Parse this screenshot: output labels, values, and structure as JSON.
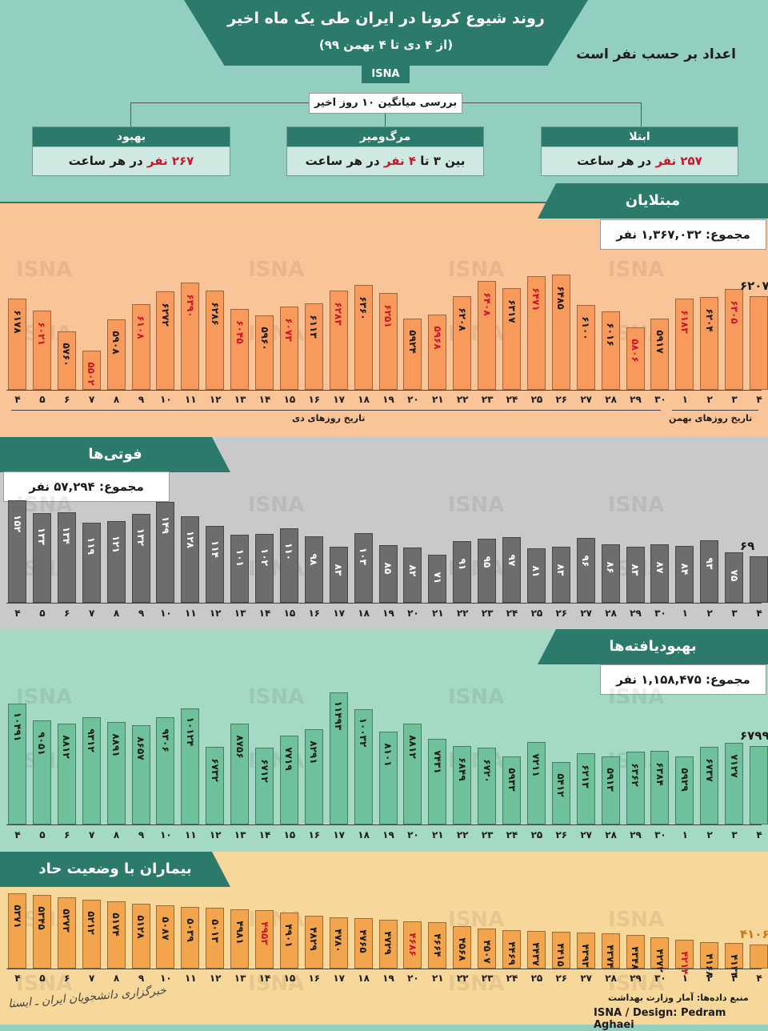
{
  "header": {
    "title": "روند شیوع کرونا در ایران طی یک ماه اخیر",
    "subtitle": "(از ۴ دی تا ۴ بهمن ۹۹)",
    "agency": "ISNA",
    "unit_note": "اعداد بر حسب نفر است",
    "avg_label": "بررسی میانگین ۱۰ روز اخیر"
  },
  "summary": {
    "recovery": {
      "title": "بهبود",
      "value": "۲۶۷ نفر",
      "rest": " در هر ساعت"
    },
    "death": {
      "title": "مرگ‌ومیر",
      "pre": "بین ۳ تا ",
      "value": "۴ نفر",
      "rest": " در هر ساعت"
    },
    "infection": {
      "title": "ابتلا",
      "value": "۲۵۷ نفر",
      "rest": " در هر ساعت"
    }
  },
  "colors": {
    "teal": "#2b7a6b",
    "infected_bg": "#f9c497",
    "infected_bar": "#f79a5c",
    "deaths_bg": "#c9c9c9",
    "deaths_bar": "#6d6d6d",
    "recovered_bg": "#a4d9c3",
    "recovered_bar": "#6ec19a",
    "severe_bg": "#f8d79a",
    "severe_bar": "#f3a54e",
    "red": "#c8172a"
  },
  "x_axis": {
    "days": [
      "۴",
      "۵",
      "۶",
      "۷",
      "۸",
      "۹",
      "۱۰",
      "۱۱",
      "۱۲",
      "۱۳",
      "۱۴",
      "۱۵",
      "۱۶",
      "۱۷",
      "۱۸",
      "۱۹",
      "۲۰",
      "۲۱",
      "۲۲",
      "۲۳",
      "۲۴",
      "۲۵",
      "۲۶",
      "۲۷",
      "۲۸",
      "۲۹",
      "۳۰",
      "۱",
      "۲",
      "۳",
      "۴"
    ],
    "month_dey": "تاریخ روزهای دی",
    "month_bahman": "تاریخ روزهای بهمن"
  },
  "sections": {
    "infected": {
      "title": "مبتلایان",
      "total": "مجموع: ۱,۳۶۷,۰۳۲ نفر"
    },
    "deaths": {
      "title": "فوتی‌ها",
      "total": "مجموع: ۵۷,۲۹۴ نفر"
    },
    "recovered": {
      "title": "بهبودیافته‌ها",
      "total": "مجموع: ۱,۱۵۸,۴۷۵ نفر"
    },
    "severe": {
      "title": "بیماران با وضعیت حاد"
    }
  },
  "chart_data": [
    {
      "type": "bar",
      "name": "infected",
      "ylim": [
        5000,
        6500
      ],
      "values": [
        6178,
        6021,
        5760,
        5502,
        5908,
        6108,
        6272,
        6390,
        6286,
        6045,
        5960,
        6073,
        6113,
        6283,
        6360,
        6251,
        5924,
        5968,
        6208,
        6408,
        6317,
        6471,
        6485,
        6100,
        6016,
        5806,
        5917,
        6183,
        6204,
        6305,
        6207
      ],
      "labels": [
        "۶۱۷۸",
        "۶۰۲۱",
        "۵۷۶۰",
        "۵۵۰۲",
        "۵۹۰۸",
        "۶۱۰۸",
        "۶۲۷۲",
        "۶۳۹۰",
        "۶۲۸۶",
        "۶۰۴۵",
        "۵۹۶۰",
        "۶۰۷۳",
        "۶۱۱۳",
        "۶۲۸۳",
        "۶۳۶۰",
        "۶۲۵۱",
        "۵۹۲۴",
        "۵۹۶۸",
        "۶۲۰۸",
        "۶۴۰۸",
        "۶۳۱۷",
        "۶۴۷۱",
        "۶۴۸۵",
        "۶۱۰۰",
        "۶۰۱۶",
        "۵۸۰۶",
        "۵۹۱۷",
        "۶۱۸۳",
        "۶۲۰۴",
        "۶۳۰۵",
        "۶۲۰۷"
      ],
      "red": [
        false,
        true,
        false,
        true,
        false,
        true,
        false,
        true,
        false,
        true,
        false,
        true,
        false,
        true,
        false,
        true,
        false,
        true,
        false,
        true,
        false,
        true,
        false,
        false,
        false,
        true,
        false,
        true,
        false,
        true,
        false
      ]
    },
    {
      "type": "bar",
      "name": "deaths",
      "ylim": [
        0,
        160
      ],
      "values": [
        152,
        133,
        134,
        119,
        121,
        132,
        149,
        128,
        114,
        101,
        102,
        110,
        98,
        83,
        103,
        85,
        82,
        71,
        91,
        95,
        97,
        81,
        83,
        96,
        86,
        83,
        87,
        84,
        93,
        75,
        69
      ],
      "labels": [
        "۱۵۲",
        "۱۳۳",
        "۱۳۴",
        "۱۱۹",
        "۱۲۱",
        "۱۳۲",
        "۱۴۹",
        "۱۲۸",
        "۱۱۴",
        "۱۰۱",
        "۱۰۲",
        "۱۱۰",
        "۹۸",
        "۸۳",
        "۱۰۳",
        "۸۵",
        "۸۲",
        "۷۱",
        "۹۱",
        "۹۵",
        "۹۷",
        "۸۱",
        "۸۳",
        "۹۶",
        "۸۶",
        "۸۳",
        "۸۷",
        "۸۴",
        "۹۳",
        "۷۵",
        "۶۹"
      ]
    },
    {
      "type": "bar",
      "name": "recovered",
      "ylim": [
        0,
        11500
      ],
      "values": [
        10491,
        9051,
        8812,
        9312,
        8891,
        8657,
        9306,
        10124,
        6732,
        8756,
        6712,
        7719,
        8291,
        11493,
        10032,
        8101,
        8812,
        7431,
        6849,
        6720,
        5933,
        7211,
        5412,
        6213,
        5913,
        6362,
        6384,
        5929,
        6737,
        7127,
        6799
      ],
      "labels": [
        "۱۰۴۹۱",
        "۹۰۵۱",
        "۸۸۱۲",
        "۹۳۱۲",
        "۸۸۹۱",
        "۸۶۵۷",
        "۹۳۰۶",
        "۱۰۱۲۴",
        "۶۷۳۲",
        "۸۷۵۶",
        "۶۷۱۲",
        "۷۷۱۹",
        "۸۲۹۱",
        "۱۱۴۹۳",
        "۱۰۰۳۲",
        "۸۱۰۱",
        "۸۸۱۲",
        "۷۴۳۱",
        "۶۸۴۹",
        "۶۷۲۰",
        "۵۹۳۳",
        "۷۲۱۱",
        "۵۴۱۲",
        "۶۲۱۳",
        "۵۹۱۳",
        "۶۳۶۲",
        "۶۳۸۴",
        "۵۹۲۹",
        "۶۷۳۷",
        "۷۱۲۷",
        "۶۷۹۹"
      ]
    },
    {
      "type": "bar",
      "name": "severe",
      "ylim": [
        3500,
        5500
      ],
      "values": [
        5371,
        5345,
        5273,
        5212,
        5174,
        5128,
        5087,
        5039,
        5013,
        4981,
        4953,
        4901,
        4829,
        4780,
        4765,
        4729,
        4686,
        4664,
        4568,
        4507,
        4469,
        4437,
        4415,
        4393,
        4374,
        4348,
        4272,
        4214,
        4168,
        4133,
        4106
      ],
      "labels": [
        "۵۳۷۱",
        "۵۳۴۵",
        "۵۲۷۳",
        "۵۲۱۲",
        "۵۱۷۴",
        "۵۱۲۸",
        "۵۰۸۷",
        "۵۰۳۹",
        "۵۰۱۳",
        "۴۹۸۱",
        "۴۹۵۳",
        "۴۹۰۱",
        "۴۸۲۹",
        "۴۷۸۰",
        "۴۷۶۵",
        "۴۷۲۹",
        "۴۶۸۶",
        "۴۶۶۴",
        "۴۵۶۸",
        "۴۵۰۷",
        "۴۴۶۹",
        "۴۴۳۷",
        "۴۴۱۵",
        "۴۳۹۳",
        "۴۳۷۴",
        "۴۳۴۸",
        "۴۲۷۲",
        "۴۲۱۴",
        "۴۱۶۸",
        "۴۱۳۳",
        "۴۱۰۶"
      ],
      "red": [
        false,
        false,
        false,
        false,
        false,
        false,
        false,
        false,
        false,
        false,
        true,
        false,
        false,
        false,
        false,
        false,
        true,
        false,
        false,
        false,
        false,
        false,
        false,
        false,
        false,
        false,
        false,
        true,
        false,
        false,
        false
      ]
    }
  ],
  "footer": {
    "source": "منبع داده‌ها: آمار وزارت بهداشت",
    "design": "ISNA / Design: Pedram Aghaei",
    "logo": "خبرگزاری دانشجویان ایران ـ ایسنا"
  },
  "watermark": "ISNA"
}
